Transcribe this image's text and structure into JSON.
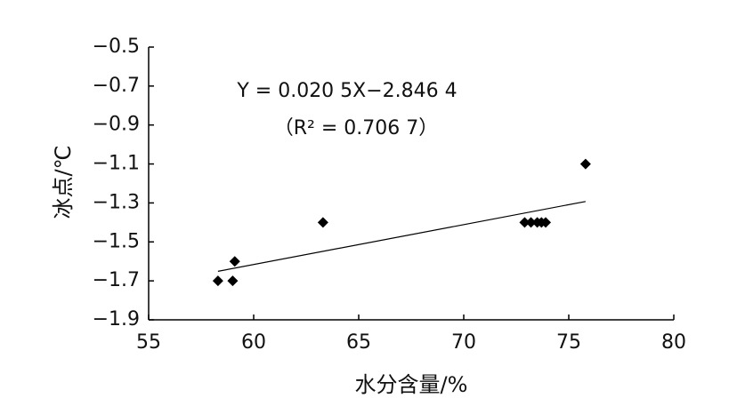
{
  "chart_data": {
    "type": "scatter",
    "x_label": "水分含量/%",
    "y_label": "冰点/℃",
    "annotations": [
      "Y = 0.020 5X−2.846 4",
      "（R² = 0.706 7）"
    ],
    "xlim": [
      55,
      80
    ],
    "xticks": [
      55,
      60,
      65,
      70,
      75,
      80
    ],
    "ylim": [
      -1.9,
      -0.5
    ],
    "yticks": [
      {
        "value": -0.5,
        "label": "−0.5"
      },
      {
        "value": -0.7,
        "label": "−0.7"
      },
      {
        "value": -0.9,
        "label": "−0.9"
      },
      {
        "value": -1.1,
        "label": "−1.1"
      },
      {
        "value": -1.3,
        "label": "−1.3"
      },
      {
        "value": -1.5,
        "label": "−1.5"
      },
      {
        "value": -1.7,
        "label": "−1.7"
      },
      {
        "value": -1.9,
        "label": "−1.9"
      }
    ],
    "series": [
      {
        "type": "scatter",
        "color": "#000000",
        "x": [
          58.3,
          59.0,
          59.1,
          63.3,
          72.9,
          73.2,
          73.5,
          73.7,
          73.9,
          75.8
        ],
        "values": [
          -1.7,
          -1.7,
          -1.6,
          -1.4,
          -1.4,
          -1.4,
          -1.4,
          -1.4,
          -1.4,
          -1.1
        ]
      },
      {
        "type": "line",
        "color": "#000000",
        "x": [
          58.3,
          75.8
        ],
        "values": [
          -1.651,
          -1.2925
        ]
      }
    ]
  }
}
